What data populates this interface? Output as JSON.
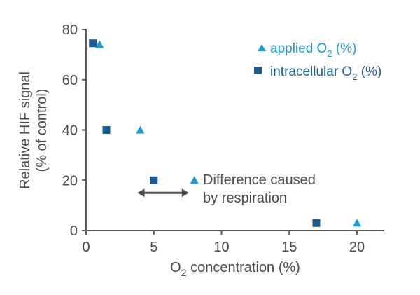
{
  "chart_data": {
    "type": "scatter",
    "title": "",
    "xlabel": {
      "pre": "O",
      "sub": "2",
      "post": " concentration (%)"
    },
    "ylabel_line1": "Relative HIF signal",
    "ylabel_line2": "(% of control)",
    "xlim": [
      0,
      22
    ],
    "ylim": [
      0,
      80
    ],
    "xticks": [
      0,
      5,
      10,
      15,
      20
    ],
    "yticks": [
      0,
      20,
      40,
      60,
      80
    ],
    "grid": false,
    "legend_position": "top-right",
    "series": [
      {
        "name": "applied O2 (%)",
        "legend": {
          "pre": "applied O",
          "sub": "2",
          "post": " (%)"
        },
        "marker": "triangle",
        "color": "#1a9ad6",
        "points": [
          [
            1,
            74
          ],
          [
            4,
            40
          ],
          [
            8,
            20
          ],
          [
            20,
            3
          ]
        ]
      },
      {
        "name": "intracellular O2 (%)",
        "legend": {
          "pre": "intracellular O",
          "sub": "2",
          "post": " (%)"
        },
        "marker": "square",
        "color": "#1b5c91",
        "points": [
          [
            0.5,
            74.5
          ],
          [
            1.5,
            40
          ],
          [
            5,
            20
          ],
          [
            17,
            3
          ]
        ]
      }
    ],
    "annotation": {
      "line1": "Difference caused",
      "line2": "by respiration",
      "arrow_from_x": 4,
      "arrow_to_x": 8,
      "arrow_y": 15,
      "arrow_color": "#4a4a4a"
    }
  }
}
